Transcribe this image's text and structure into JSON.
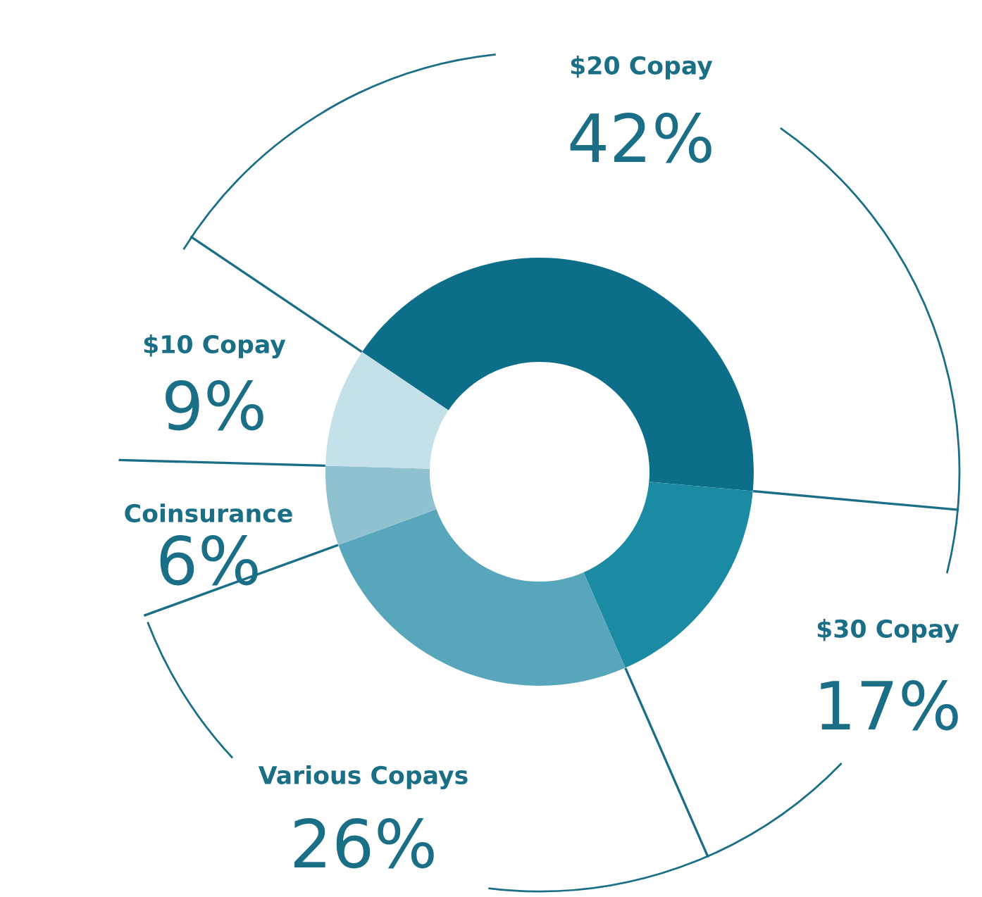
{
  "chart_data": {
    "type": "donut",
    "categories": [
      "$20 Copay",
      "$30 Copay",
      "Various Copays",
      "Coinsurance",
      "$10 Copay"
    ],
    "values": [
      42,
      17,
      26,
      6,
      9
    ],
    "colors": [
      "#0d6e8a",
      "#1b8aa3",
      "#58a6bb",
      "#8fc1cf",
      "#c4e0e8"
    ],
    "value_labels": [
      "42%",
      "17%",
      "26%",
      "6%",
      "9%"
    ]
  }
}
